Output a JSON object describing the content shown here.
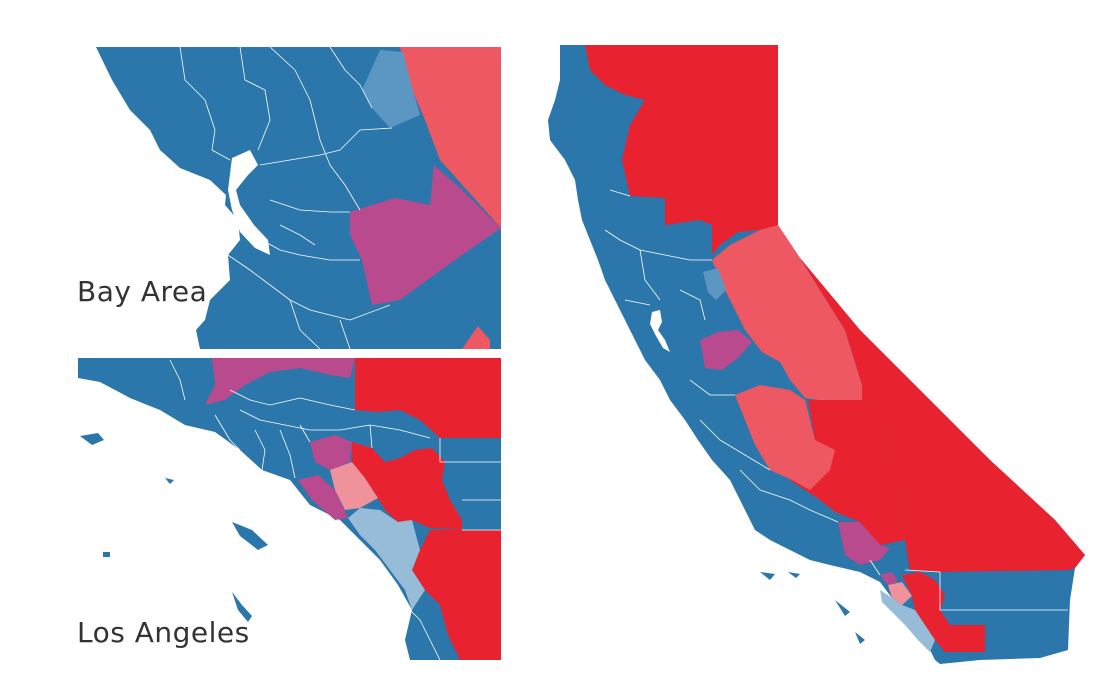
{
  "labels": {
    "bay_area": "Bay Area",
    "los_angeles": "Los Angeles"
  },
  "colors": {
    "dem_strong": "#2b76ab",
    "dem_lean": "#5b97c2",
    "dem_light": "#96bcd8",
    "tossup": "#b84a8d",
    "rep_lean_light": "#f0929b",
    "rep_lean": "#ee5862",
    "rep_strong": "#e8222f"
  },
  "legend_categories": [
    "dem_strong",
    "dem_lean",
    "dem_light",
    "tossup",
    "rep_lean_light",
    "rep_lean",
    "rep_strong"
  ]
}
